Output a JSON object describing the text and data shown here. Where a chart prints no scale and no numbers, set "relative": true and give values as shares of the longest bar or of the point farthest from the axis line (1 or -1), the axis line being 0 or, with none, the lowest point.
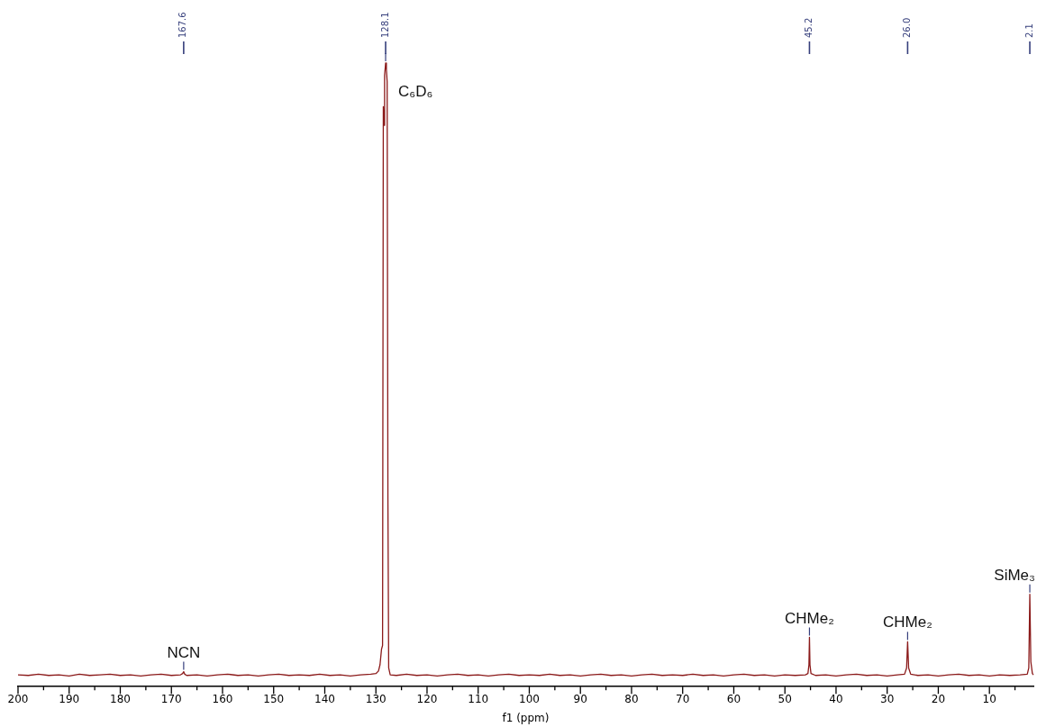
{
  "chart_data": {
    "type": "line",
    "relative": true,
    "xlabel": "f1 (ppm)",
    "color": "#8b1a1a",
    "xlim": [
      200,
      1.4
    ],
    "xticks": [
      200,
      {
        "value": 195,
        "label": null
      },
      190,
      {
        "value": 185,
        "label": null
      },
      180,
      {
        "value": 175,
        "label": null
      },
      170,
      {
        "value": 165,
        "label": null
      },
      160,
      {
        "value": 155,
        "label": null
      },
      150,
      {
        "value": 145,
        "label": null
      },
      140,
      {
        "value": 135,
        "label": null
      },
      130,
      {
        "value": 125,
        "label": null
      },
      120,
      {
        "value": 115,
        "label": null
      },
      110,
      {
        "value": 105,
        "label": null
      },
      100,
      {
        "value": 95,
        "label": null
      },
      90,
      {
        "value": 85,
        "label": null
      },
      80,
      {
        "value": 75,
        "label": null
      },
      70,
      {
        "value": 65,
        "label": null
      },
      60,
      {
        "value": 55,
        "label": null
      },
      50,
      {
        "value": 45,
        "label": null
      },
      40,
      {
        "value": 35,
        "label": null
      },
      30,
      {
        "value": 25,
        "label": null
      },
      20,
      {
        "value": 15,
        "label": null
      },
      10,
      {
        "value": 5,
        "label": null
      }
    ],
    "x": [
      200,
      198,
      196,
      194,
      192,
      190,
      188,
      186,
      184,
      182,
      180,
      178,
      176,
      174,
      172,
      170,
      168.2,
      167.8,
      167.6,
      167.4,
      167,
      165,
      163,
      161,
      159,
      157,
      155,
      153,
      151,
      149,
      147,
      145,
      143,
      141,
      139,
      137,
      135,
      133,
      131,
      130,
      129.5,
      129.2,
      128.9,
      128.7,
      128.55,
      128.45,
      128.3,
      128.1,
      127.95,
      127.8,
      127.65,
      127.5,
      127.2,
      126,
      124,
      122,
      120,
      118,
      116,
      114,
      112,
      110,
      108,
      106,
      104,
      102,
      100,
      98,
      96,
      94,
      92,
      90,
      88,
      86,
      84,
      82,
      80,
      78,
      76,
      74,
      72,
      70,
      68,
      66,
      64,
      62,
      60,
      58,
      56,
      54,
      52,
      50,
      48,
      46,
      45.5,
      45.3,
      45.2,
      45.1,
      44.9,
      44,
      42,
      40,
      38,
      36,
      34,
      32,
      30,
      28,
      26.6,
      26.2,
      26,
      25.8,
      25.4,
      24,
      22,
      20,
      18,
      16,
      14,
      12,
      10,
      8,
      6,
      4,
      2.6,
      2.3,
      2.1,
      1.9,
      1.6,
      1.4
    ],
    "values": [
      0.019,
      0.018,
      0.02,
      0.018,
      0.019,
      0.017,
      0.02,
      0.018,
      0.019,
      0.02,
      0.018,
      0.019,
      0.017,
      0.019,
      0.02,
      0.018,
      0.019,
      0.021,
      0.024,
      0.02,
      0.018,
      0.019,
      0.017,
      0.019,
      0.02,
      0.018,
      0.019,
      0.017,
      0.019,
      0.02,
      0.018,
      0.019,
      0.018,
      0.02,
      0.018,
      0.019,
      0.017,
      0.019,
      0.02,
      0.021,
      0.025,
      0.035,
      0.06,
      0.066,
      0.93,
      0.9,
      0.98,
      1.0,
      0.99,
      0.97,
      0.3,
      0.03,
      0.019,
      0.018,
      0.02,
      0.018,
      0.019,
      0.017,
      0.019,
      0.02,
      0.018,
      0.019,
      0.017,
      0.019,
      0.02,
      0.018,
      0.019,
      0.018,
      0.02,
      0.018,
      0.019,
      0.017,
      0.019,
      0.02,
      0.018,
      0.019,
      0.017,
      0.019,
      0.02,
      0.018,
      0.019,
      0.018,
      0.02,
      0.018,
      0.019,
      0.017,
      0.019,
      0.02,
      0.018,
      0.019,
      0.017,
      0.019,
      0.018,
      0.019,
      0.021,
      0.035,
      0.079,
      0.035,
      0.021,
      0.018,
      0.019,
      0.017,
      0.019,
      0.02,
      0.018,
      0.019,
      0.017,
      0.019,
      0.02,
      0.03,
      0.072,
      0.03,
      0.02,
      0.018,
      0.019,
      0.017,
      0.019,
      0.02,
      0.018,
      0.019,
      0.017,
      0.019,
      0.018,
      0.019,
      0.02,
      0.03,
      0.148,
      0.04,
      0.021,
      0.019
    ],
    "annotations": [
      {
        "text": "167.6",
        "x": 167.6
      },
      {
        "text": "128.1",
        "x": 128.1
      },
      {
        "text": "45.2",
        "x": 45.2
      },
      {
        "text": "26.0",
        "x": 26.0
      },
      {
        "text": "2.1",
        "x": 2.1
      },
      {
        "text": "NCN",
        "x": 167.6,
        "y": 0.024
      },
      {
        "text": "C₆D₆",
        "x": 128.1,
        "y": 1.0
      },
      {
        "text": "CHMe₂",
        "x": 45.2,
        "y": 0.079
      },
      {
        "text": "CHMe₂",
        "x": 26.0,
        "y": 0.072
      },
      {
        "text": "SiMe₃",
        "x": 2.1,
        "y": 0.148
      }
    ]
  }
}
